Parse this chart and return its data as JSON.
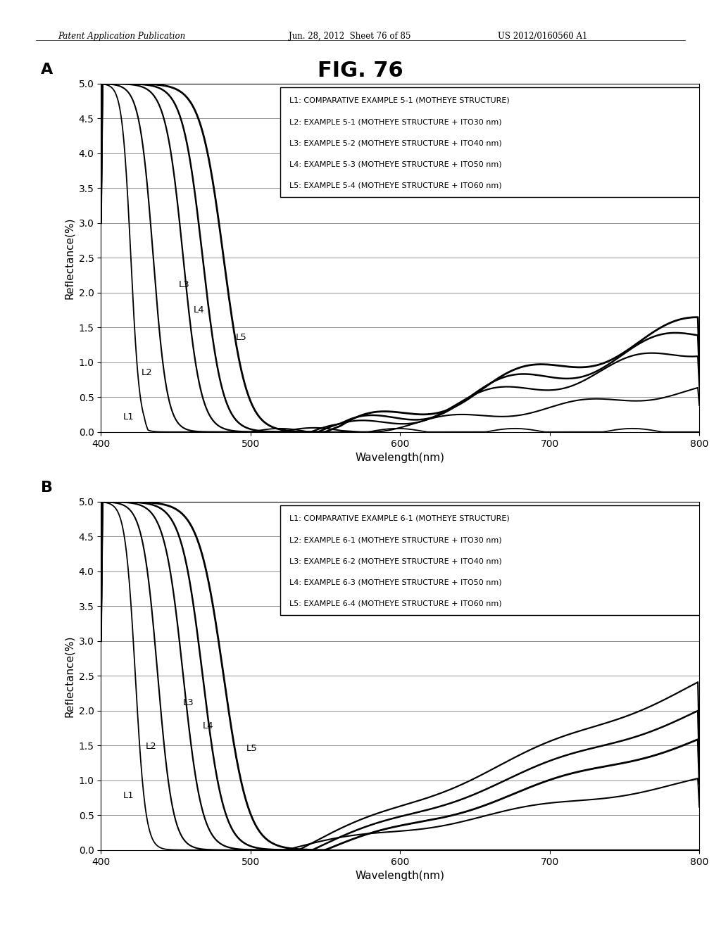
{
  "fig_title": "FIG. 76",
  "header_left": "Patent Application Publication",
  "header_center": "Jun. 28, 2012  Sheet 76 of 85",
  "header_right": "US 2012/0160560 A1",
  "panel_A_label": "A",
  "panel_B_label": "B",
  "xlabel": "Wavelength(nm)",
  "ylabel": "Reflectance(%)",
  "xmin": 400,
  "xmax": 800,
  "ymin": 0.0,
  "ymax": 5.0,
  "yticks": [
    0.0,
    0.5,
    1.0,
    1.5,
    2.0,
    2.5,
    3.0,
    3.5,
    4.0,
    4.5,
    5.0
  ],
  "xticks": [
    400,
    500,
    600,
    700,
    800
  ],
  "legend_A": [
    "L1: COMPARATIVE EXAMPLE 5-1 (MOTHEYE STRUCTURE)",
    "L2: EXAMPLE 5-1 (MOTHEYE STRUCTURE + ITO30 nm)",
    "L3: EXAMPLE 5-2 (MOTHEYE STRUCTURE + ITO40 nm)",
    "L4: EXAMPLE 5-3 (MOTHEYE STRUCTURE + ITO50 nm)",
    "L5: EXAMPLE 5-4 (MOTHEYE STRUCTURE + ITO60 nm)"
  ],
  "legend_B": [
    "L1: COMPARATIVE EXAMPLE 6-1 (MOTHEYE STRUCTURE)",
    "L2: EXAMPLE 6-1 (MOTHEYE STRUCTURE + ITO30 nm)",
    "L3: EXAMPLE 6-2 (MOTHEYE STRUCTURE + ITO40 nm)",
    "L4: EXAMPLE 6-3 (MOTHEYE STRUCTURE + ITO50 nm)",
    "L5: EXAMPLE 6-4 (MOTHEYE STRUCTURE + ITO60 nm)"
  ],
  "background_color": "#ffffff",
  "line_color": "#000000",
  "grid_color": "#808080",
  "annot_A": [
    [
      "L1",
      415,
      0.18
    ],
    [
      "L2",
      427,
      0.82
    ],
    [
      "L3",
      452,
      2.08
    ],
    [
      "L4",
      462,
      1.72
    ],
    [
      "L5",
      490,
      1.32
    ]
  ],
  "annot_B": [
    [
      "L1",
      415,
      0.75
    ],
    [
      "L2",
      430,
      1.45
    ],
    [
      "L3",
      455,
      2.08
    ],
    [
      "L4",
      468,
      1.75
    ],
    [
      "L5",
      497,
      1.42
    ]
  ]
}
